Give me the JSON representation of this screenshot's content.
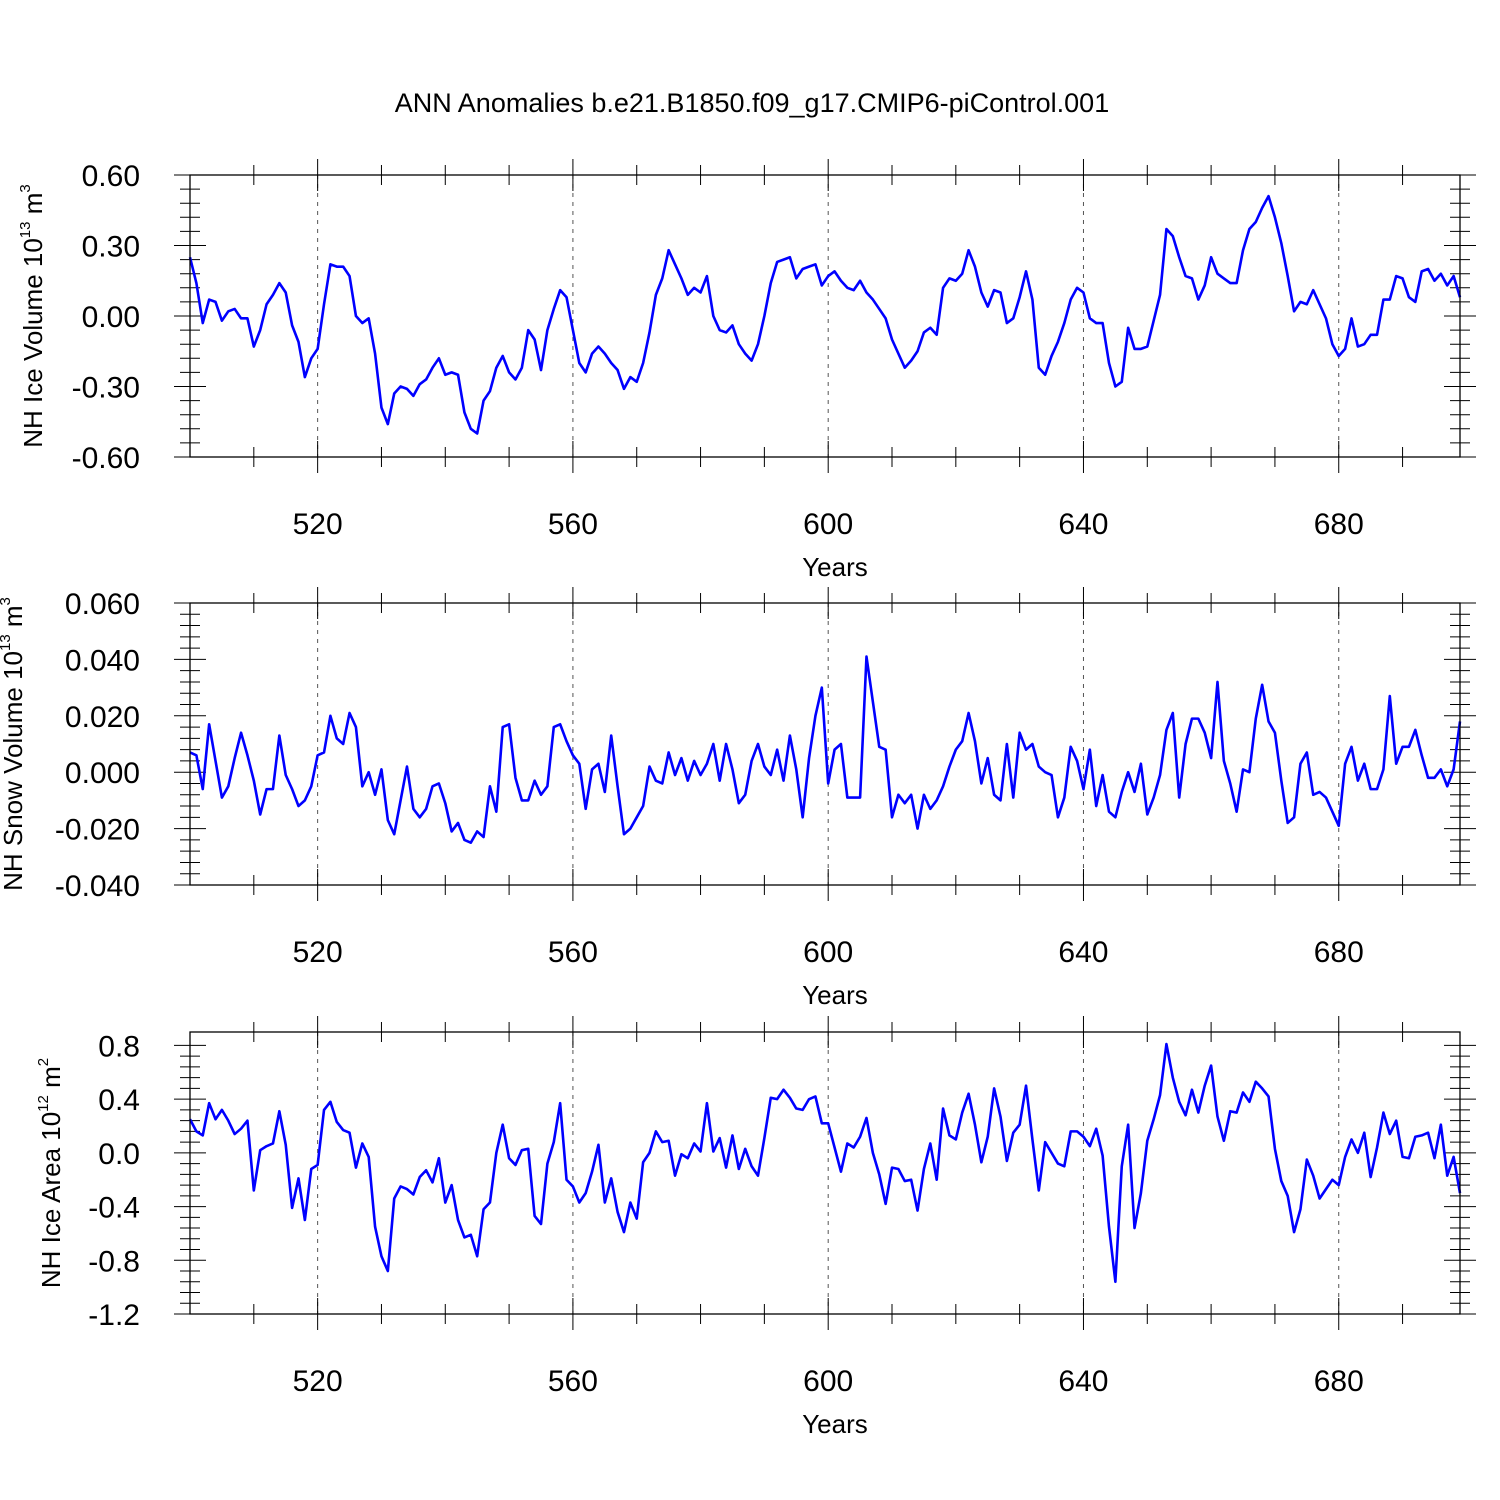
{
  "title": "ANN Anomalies b.e21.B1850.f09_g17.CMIP6-piControl.001",
  "style": {
    "line_color": "#0000ff",
    "axis_color": "#000000",
    "grid_color": "#555555"
  },
  "chart_data": [
    {
      "type": "line",
      "ylabel": {
        "prefix": "NH Ice Volume 10",
        "exp": "13",
        "unit": " m",
        "unit_exp": "3"
      },
      "xlabel": "Years",
      "xlim": [
        500,
        699
      ],
      "ylim": [
        -0.6,
        0.6
      ],
      "xticks": [
        520,
        560,
        600,
        640,
        680
      ],
      "yticks": [
        -0.6,
        -0.3,
        0.0,
        0.3,
        0.6
      ],
      "ytick_labels": [
        "-0.60",
        "-0.30",
        "0.00",
        "0.30",
        "0.60"
      ],
      "grid": "vertical dashed at x ticks",
      "x_start": 500,
      "values": [
        0.25,
        0.14,
        -0.03,
        0.07,
        0.06,
        -0.02,
        0.02,
        0.03,
        -0.01,
        -0.01,
        -0.13,
        -0.06,
        0.05,
        0.09,
        0.14,
        0.1,
        -0.04,
        -0.11,
        -0.26,
        -0.18,
        -0.14,
        0.05,
        0.22,
        0.21,
        0.21,
        0.17,
        0.0,
        -0.03,
        -0.01,
        -0.16,
        -0.39,
        -0.46,
        -0.33,
        -0.3,
        -0.31,
        -0.34,
        -0.29,
        -0.27,
        -0.22,
        -0.18,
        -0.25,
        -0.24,
        -0.25,
        -0.41,
        -0.48,
        -0.5,
        -0.36,
        -0.32,
        -0.22,
        -0.17,
        -0.24,
        -0.27,
        -0.22,
        -0.06,
        -0.1,
        -0.23,
        -0.06,
        0.03,
        0.11,
        0.08,
        -0.06,
        -0.2,
        -0.24,
        -0.16,
        -0.13,
        -0.16,
        -0.2,
        -0.23,
        -0.31,
        -0.26,
        -0.28,
        -0.2,
        -0.07,
        0.09,
        0.16,
        0.28,
        0.22,
        0.16,
        0.09,
        0.12,
        0.1,
        0.17,
        0.0,
        -0.06,
        -0.07,
        -0.04,
        -0.12,
        -0.16,
        -0.19,
        -0.12,
        0.0,
        0.14,
        0.23,
        0.24,
        0.25,
        0.16,
        0.2,
        0.21,
        0.22,
        0.13,
        0.17,
        0.19,
        0.15,
        0.12,
        0.11,
        0.15,
        0.1,
        0.07,
        0.03,
        -0.01,
        -0.1,
        -0.16,
        -0.22,
        -0.19,
        -0.15,
        -0.07,
        -0.05,
        -0.08,
        0.12,
        0.16,
        0.15,
        0.18,
        0.28,
        0.21,
        0.1,
        0.04,
        0.11,
        0.1,
        -0.03,
        -0.01,
        0.08,
        0.19,
        0.07,
        -0.22,
        -0.25,
        -0.17,
        -0.11,
        -0.03,
        0.07,
        0.12,
        0.1,
        -0.01,
        -0.03,
        -0.03,
        -0.2,
        -0.3,
        -0.28,
        -0.05,
        -0.14,
        -0.14,
        -0.13,
        -0.02,
        0.09,
        0.37,
        0.34,
        0.25,
        0.17,
        0.16,
        0.07,
        0.13,
        0.25,
        0.18,
        0.16,
        0.14,
        0.14,
        0.28,
        0.37,
        0.4,
        0.46,
        0.51,
        0.42,
        0.31,
        0.17,
        0.02,
        0.06,
        0.05,
        0.11,
        0.05,
        -0.01,
        -0.12,
        -0.17,
        -0.14,
        -0.01,
        -0.13,
        -0.12,
        -0.08,
        -0.08,
        0.07,
        0.07,
        0.17,
        0.16,
        0.08,
        0.06,
        0.19,
        0.2,
        0.15,
        0.18,
        0.13,
        0.17,
        0.08
      ]
    },
    {
      "type": "line",
      "ylabel": {
        "prefix": "NH Snow Volume 10",
        "exp": "13",
        "unit": " m",
        "unit_exp": "3"
      },
      "xlabel": "Years",
      "xlim": [
        500,
        699
      ],
      "ylim": [
        -0.04,
        0.06
      ],
      "xticks": [
        520,
        560,
        600,
        640,
        680
      ],
      "yticks": [
        -0.04,
        -0.02,
        0.0,
        0.02,
        0.04,
        0.06
      ],
      "ytick_labels": [
        "-0.040",
        "-0.020",
        "0.000",
        "0.020",
        "0.040",
        "0.060"
      ],
      "grid": "vertical dashed at x ticks",
      "x_start": 500,
      "values": [
        0.007,
        0.006,
        -0.006,
        0.017,
        0.004,
        -0.009,
        -0.005,
        0.005,
        0.014,
        0.006,
        -0.003,
        -0.015,
        -0.006,
        -0.006,
        0.013,
        -0.001,
        -0.006,
        -0.012,
        -0.01,
        -0.005,
        0.006,
        0.007,
        0.02,
        0.012,
        0.01,
        0.021,
        0.016,
        -0.005,
        0.0,
        -0.008,
        0.001,
        -0.017,
        -0.022,
        -0.01,
        0.002,
        -0.013,
        -0.016,
        -0.013,
        -0.005,
        -0.004,
        -0.011,
        -0.021,
        -0.018,
        -0.024,
        -0.025,
        -0.021,
        -0.023,
        -0.005,
        -0.014,
        0.016,
        0.017,
        -0.002,
        -0.01,
        -0.01,
        -0.003,
        -0.008,
        -0.005,
        0.016,
        0.017,
        0.011,
        0.006,
        0.003,
        -0.013,
        0.001,
        0.003,
        -0.007,
        0.013,
        -0.005,
        -0.022,
        -0.02,
        -0.016,
        -0.012,
        0.002,
        -0.003,
        -0.004,
        0.007,
        -0.001,
        0.005,
        -0.003,
        0.004,
        -0.001,
        0.003,
        0.01,
        -0.003,
        0.01,
        0.001,
        -0.011,
        -0.008,
        0.004,
        0.01,
        0.002,
        -0.001,
        0.008,
        -0.003,
        0.013,
        0.001,
        -0.016,
        0.005,
        0.02,
        0.03,
        -0.004,
        0.008,
        0.01,
        -0.009,
        -0.009,
        -0.009,
        0.041,
        0.025,
        0.009,
        0.008,
        -0.016,
        -0.008,
        -0.011,
        -0.008,
        -0.02,
        -0.008,
        -0.013,
        -0.01,
        -0.005,
        0.002,
        0.008,
        0.011,
        0.021,
        0.011,
        -0.004,
        0.005,
        -0.008,
        -0.01,
        0.01,
        -0.009,
        0.014,
        0.008,
        0.01,
        0.002,
        0.0,
        -0.001,
        -0.016,
        -0.009,
        0.009,
        0.004,
        -0.006,
        0.008,
        -0.012,
        -0.001,
        -0.014,
        -0.016,
        -0.007,
        0.0,
        -0.007,
        0.003,
        -0.015,
        -0.009,
        -0.001,
        0.015,
        0.021,
        -0.009,
        0.01,
        0.019,
        0.019,
        0.014,
        0.005,
        0.032,
        0.004,
        -0.004,
        -0.014,
        0.001,
        0.0,
        0.019,
        0.031,
        0.018,
        0.014,
        -0.003,
        -0.018,
        -0.016,
        0.003,
        0.007,
        -0.008,
        -0.007,
        -0.009,
        -0.014,
        -0.019,
        0.003,
        0.009,
        -0.003,
        0.003,
        -0.006,
        -0.006,
        0.001,
        0.027,
        0.003,
        0.009,
        0.009,
        0.015,
        0.006,
        -0.002,
        -0.002,
        0.001,
        -0.005,
        0.001,
        0.018
      ]
    },
    {
      "type": "line",
      "ylabel": {
        "prefix": "NH Ice Area 10",
        "exp": "12",
        "unit": " m",
        "unit_exp": "2"
      },
      "xlabel": "Years",
      "xlim": [
        500,
        699
      ],
      "ylim": [
        -1.2,
        0.9
      ],
      "xticks": [
        520,
        560,
        600,
        640,
        680
      ],
      "yticks": [
        -1.2,
        -0.8,
        -0.4,
        0.0,
        0.4,
        0.8
      ],
      "ytick_labels": [
        "-1.2",
        "-0.8",
        "-0.4",
        "0.0",
        "0.4",
        "0.8"
      ],
      "grid": "vertical dashed at x ticks",
      "x_start": 500,
      "values": [
        0.25,
        0.16,
        0.13,
        0.37,
        0.25,
        0.32,
        0.24,
        0.14,
        0.18,
        0.24,
        -0.28,
        0.02,
        0.05,
        0.07,
        0.31,
        0.06,
        -0.41,
        -0.19,
        -0.5,
        -0.12,
        -0.09,
        0.32,
        0.38,
        0.23,
        0.17,
        0.15,
        -0.11,
        0.07,
        -0.03,
        -0.55,
        -0.77,
        -0.88,
        -0.34,
        -0.25,
        -0.27,
        -0.31,
        -0.18,
        -0.13,
        -0.22,
        -0.04,
        -0.37,
        -0.24,
        -0.5,
        -0.63,
        -0.61,
        -0.77,
        -0.42,
        -0.37,
        0.0,
        0.21,
        -0.04,
        -0.09,
        0.02,
        0.03,
        -0.47,
        -0.53,
        -0.08,
        0.08,
        0.37,
        -0.2,
        -0.25,
        -0.37,
        -0.3,
        -0.14,
        0.06,
        -0.37,
        -0.19,
        -0.44,
        -0.59,
        -0.37,
        -0.49,
        -0.07,
        0.0,
        0.16,
        0.08,
        0.09,
        -0.17,
        -0.01,
        -0.04,
        0.07,
        0.01,
        0.37,
        0.01,
        0.11,
        -0.11,
        0.13,
        -0.12,
        0.03,
        -0.1,
        -0.17,
        0.11,
        0.41,
        0.4,
        0.47,
        0.41,
        0.33,
        0.32,
        0.4,
        0.42,
        0.22,
        0.22,
        0.04,
        -0.14,
        0.07,
        0.04,
        0.12,
        0.26,
        0.0,
        -0.16,
        -0.38,
        -0.11,
        -0.12,
        -0.21,
        -0.2,
        -0.43,
        -0.12,
        0.07,
        -0.2,
        0.33,
        0.13,
        0.1,
        0.3,
        0.44,
        0.21,
        -0.07,
        0.12,
        0.48,
        0.27,
        -0.06,
        0.15,
        0.21,
        0.5,
        0.1,
        -0.28,
        0.08,
        0.0,
        -0.08,
        -0.1,
        0.16,
        0.16,
        0.12,
        0.05,
        0.18,
        -0.02,
        -0.55,
        -0.96,
        -0.1,
        0.21,
        -0.56,
        -0.3,
        0.09,
        0.25,
        0.43,
        0.81,
        0.56,
        0.38,
        0.28,
        0.47,
        0.3,
        0.5,
        0.65,
        0.27,
        0.09,
        0.31,
        0.3,
        0.45,
        0.38,
        0.53,
        0.48,
        0.42,
        0.03,
        -0.21,
        -0.32,
        -0.59,
        -0.42,
        -0.05,
        -0.17,
        -0.34,
        -0.27,
        -0.2,
        -0.24,
        -0.03,
        0.1,
        0.0,
        0.15,
        -0.18,
        0.04,
        0.3,
        0.14,
        0.24,
        -0.03,
        -0.04,
        0.12,
        0.13,
        0.15,
        -0.04,
        0.21,
        -0.17,
        -0.03,
        -0.3
      ]
    }
  ]
}
